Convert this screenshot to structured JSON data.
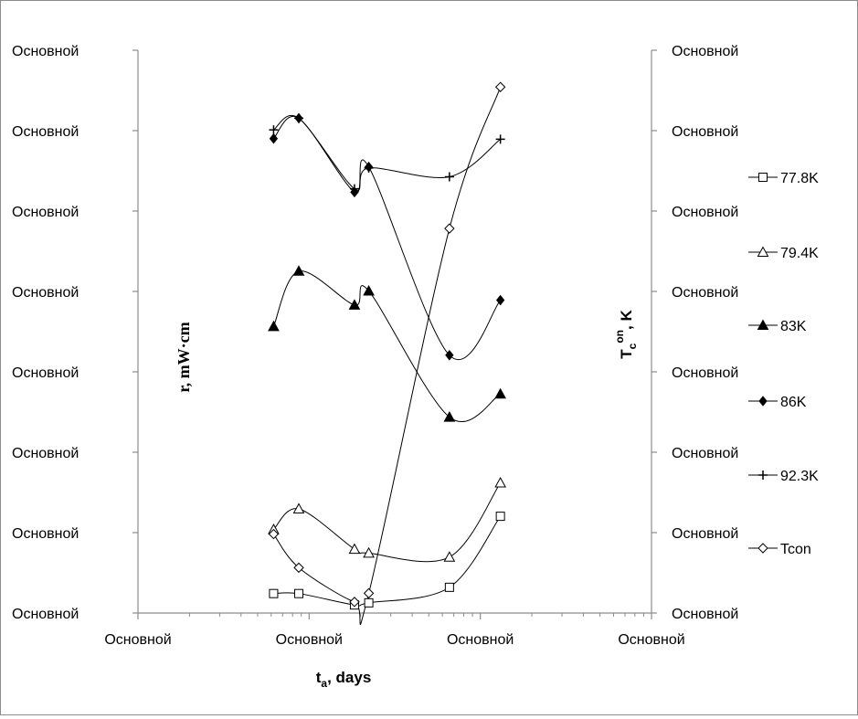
{
  "chart_data": {
    "type": "line",
    "xscale": "log",
    "x_tick_labels": [
      "Основной",
      "Основной",
      "Основной",
      "Основной"
    ],
    "y_left_tick_labels": [
      "Основной",
      "Основной",
      "Основной",
      "Основной",
      "Основной",
      "Основной",
      "Основной",
      "Основной"
    ],
    "y_right_tick_labels": [
      "Основной",
      "Основной",
      "Основной",
      "Основной",
      "Основной",
      "Основной",
      "Основной",
      "Основной"
    ],
    "xlabel": {
      "main": "t",
      "sub": "a",
      "rest": ", days"
    },
    "ylabel_left": "r, mW·cm",
    "ylabel_right": {
      "main": "T",
      "sub": "c",
      "sup": "on",
      "rest": ", K"
    },
    "grid": false,
    "legend_position": "right",
    "note": "Tick labels are placeholders; x positions are log-decade fractions and y positions are fractions of the left-axis height.",
    "x": [
      0.62,
      0.87,
      1.84,
      2.23,
      6.6,
      13.1
    ],
    "series": [
      {
        "name": "77.8K",
        "marker": "square-open",
        "axis": "left",
        "values": [
          0.128,
          0.128,
          0.053,
          0.067,
          0.169,
          0.636
        ]
      },
      {
        "name": "79.4K",
        "marker": "triangle-open",
        "axis": "left",
        "values": [
          0.549,
          0.685,
          0.42,
          0.394,
          0.368,
          0.856
        ]
      },
      {
        "name": "83K",
        "marker": "triangle-filled",
        "axis": "left",
        "values": [
          1.884,
          2.248,
          2.025,
          2.117,
          1.288,
          1.44
        ]
      },
      {
        "name": "86K",
        "marker": "diamond-filled",
        "axis": "left",
        "values": [
          3.119,
          3.253,
          2.767,
          2.933,
          1.695,
          2.057
        ]
      },
      {
        "name": "92.3K",
        "marker": "plus",
        "axis": "left",
        "values": [
          3.177,
          3.253,
          2.789,
          2.926,
          2.868,
          3.115
        ]
      },
      {
        "name": "Tcon",
        "marker": "diamond-open",
        "axis": "right",
        "values": [
          0.519,
          0.298,
          0.073,
          0.13,
          2.528,
          3.458
        ]
      }
    ],
    "ylim_fraction": [
      0,
      3.7
    ]
  },
  "colors": {
    "line": "#000000",
    "frame": "#8c8c8c",
    "background": "#ffffff"
  }
}
